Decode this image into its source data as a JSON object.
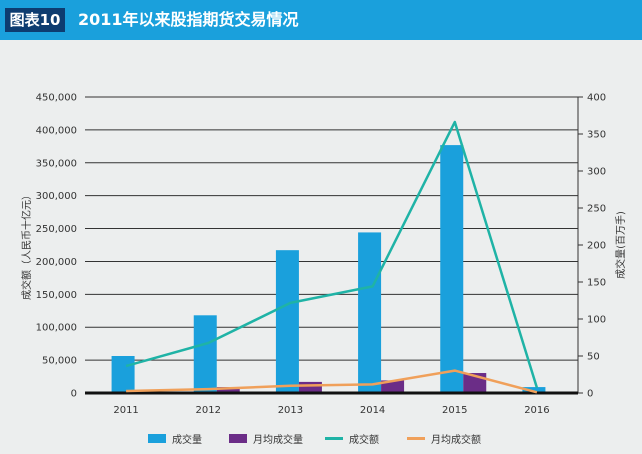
{
  "header": {
    "badge": "图表10",
    "title": "2011年以来股指期货交易情况"
  },
  "chart_data": {
    "type": "bar",
    "categories": [
      "2011",
      "2012",
      "2013",
      "2014",
      "2015",
      "2016"
    ],
    "series": [
      {
        "name": "成交量",
        "kind": "bar",
        "axis": "right",
        "color": "#1aa0dc",
        "values": [
          50,
          105,
          193,
          217,
          335,
          8
        ]
      },
      {
        "name": "月均成交量",
        "kind": "bar",
        "axis": "right",
        "color": "#6b2d87",
        "values": [
          3,
          8,
          15,
          17,
          27,
          1
        ]
      },
      {
        "name": "成交额",
        "kind": "line",
        "axis": "left",
        "color": "#1fb3a6",
        "values": [
          41000,
          76000,
          137000,
          162000,
          412000,
          8000
        ]
      },
      {
        "name": "月均成交额",
        "kind": "line",
        "axis": "left",
        "color": "#f0a05a",
        "values": [
          3000,
          6000,
          11000,
          13000,
          34000,
          1000
        ]
      }
    ],
    "ylabel_left": "成交额（人民币十亿元）",
    "ylabel_right": "成交量(百万手)",
    "ylim_left": [
      0,
      450000
    ],
    "ylim_right": [
      0,
      400
    ],
    "yticks_left": [
      "0",
      "50,000",
      "100,000",
      "150,000",
      "200,000",
      "250,000",
      "300,000",
      "350,000",
      "400,000",
      "450,000"
    ],
    "yticks_right": [
      "0",
      "50",
      "100",
      "150",
      "200",
      "250",
      "300",
      "350",
      "400"
    ],
    "grid": true,
    "legend": "bottom"
  },
  "colors": {
    "header": "#1aa0dc",
    "badge": "#0d3c70",
    "background": "#eceeee"
  }
}
